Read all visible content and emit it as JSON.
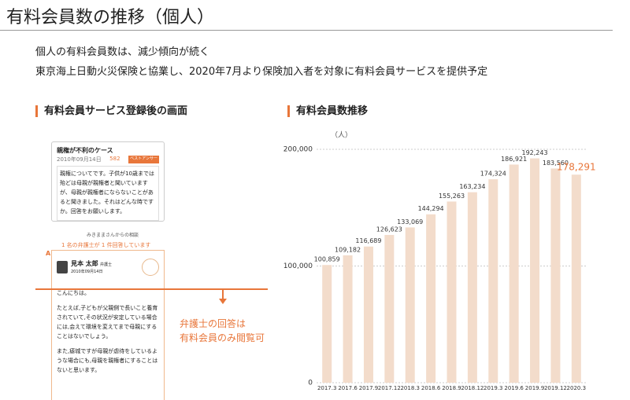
{
  "header": {
    "title": "有料会員数の推移（個人）"
  },
  "bullets": [
    "個人の有料会員数は、減少傾向が続く",
    "東京海上日動火災保険と協業し、2020年7月より保険加入者を対象に有料会員サービスを提供予定"
  ],
  "left_panel": {
    "heading": "有料会員サービス登録後の画面",
    "question": {
      "title": "親権が不利のケース",
      "date": "2010年09月14日",
      "views": "582",
      "badge": "ベストアンサー",
      "body": "親権についてです。子供が10歳までは殆どは母親が親権者と聞いていますが、母親が親権者にならないことがあると聞きました。それはどんな時ですか。回答をお願いします。",
      "author": "みきままさんからの相談"
    },
    "answer_count": "1 名の弁護士が 1 件回答しています",
    "answer": {
      "mark": "A",
      "name": "見本 太郎",
      "role": "弁護士",
      "date": "2010年09月14日",
      "paragraphs": [
        "こんにちは。",
        "たとえば,子どもが父親側で長いこと養育されていて,その状況が安定している場合には,会えて環境を変えてまで母親にすることはないでしょう。",
        "また,瘧城ですが母親が虐待をしているような場合にも,母親を親権者にすることはないと思います。"
      ]
    },
    "callout": [
      "弁護士の回答は",
      "有料会員のみ閲覧可"
    ]
  },
  "chart_data": {
    "type": "bar",
    "title": "有料会員数推移",
    "unit_label": "（人）",
    "categories": [
      "2017.3",
      "2017.6",
      "2017.9",
      "2017.12",
      "2018.3",
      "2018.6",
      "2018.9",
      "2018.12",
      "2019.3",
      "2019.6",
      "2019.9",
      "2019.12",
      "2020.3"
    ],
    "values": [
      100859,
      109182,
      116689,
      126623,
      133069,
      144294,
      155263,
      163234,
      174324,
      186921,
      192243,
      183560,
      178291
    ],
    "value_labels": [
      "100,859",
      "109,182",
      "116,689",
      "126,623",
      "133,069",
      "144,294",
      "155,263",
      "163,234",
      "174,324",
      "186,921",
      "192,243",
      "183,560",
      "178,291"
    ],
    "value_label_colors": [
      "#333333",
      "#333333",
      "#333333",
      "#333333",
      "#333333",
      "#333333",
      "#333333",
      "#333333",
      "#333333",
      "#333333",
      "#333333",
      "#333333",
      "#e8763a"
    ],
    "color": "#f3dccb",
    "ylim": [
      0,
      200000
    ],
    "yticks": [
      0,
      {
        "value": 100000,
        "label": "100,000"
      },
      {
        "value": 200000,
        "label": "200,000"
      }
    ],
    "grid": true
  }
}
